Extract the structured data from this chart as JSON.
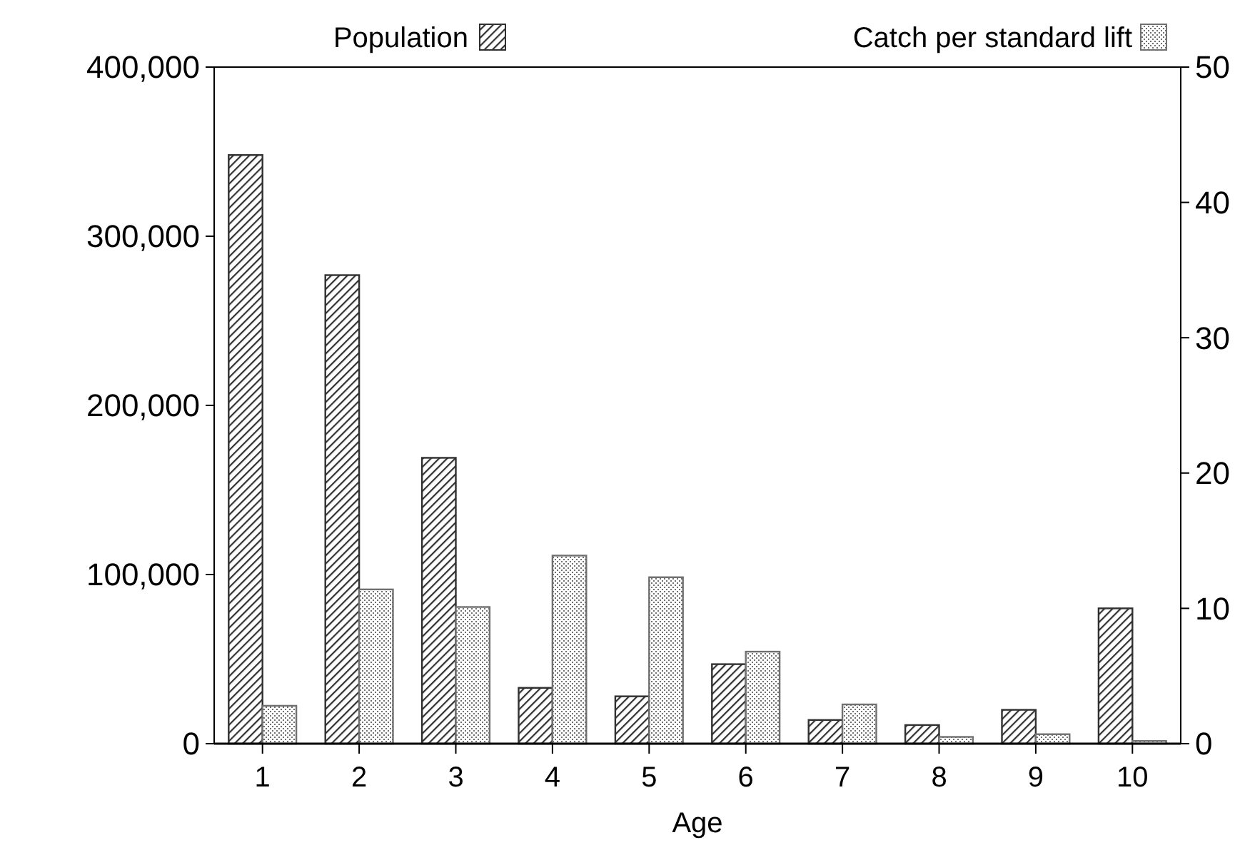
{
  "chart_data": {
    "type": "bar",
    "xlabel": "Age",
    "categories": [
      "1",
      "2",
      "3",
      "4",
      "5",
      "6",
      "7",
      "8",
      "9",
      "10"
    ],
    "series": [
      {
        "name": "Population",
        "color": "#303030",
        "values": [
          348000,
          277000,
          169000,
          33000,
          28000,
          47000,
          14000,
          11000,
          20000,
          80000
        ]
      },
      {
        "name": "Catch per standard lift",
        "color": "#707070",
        "axis": "y2",
        "values": [
          2.8,
          11.4,
          10.1,
          13.9,
          12.3,
          6.8,
          2.9,
          0.5,
          0.7,
          0.2
        ]
      }
    ],
    "ylim": [
      0,
      400000
    ],
    "yticks": [
      {
        "value": 0,
        "label": "0"
      },
      {
        "value": 100000,
        "label": "100,000"
      },
      {
        "value": 200000,
        "label": "200,000"
      },
      {
        "value": 300000,
        "label": "300,000"
      },
      {
        "value": 400000,
        "label": "400,000"
      }
    ],
    "y2lim": [
      0,
      50
    ],
    "y2ticks": [
      0,
      10,
      20,
      30,
      40,
      50
    ],
    "legend": "top",
    "grid": false
  }
}
